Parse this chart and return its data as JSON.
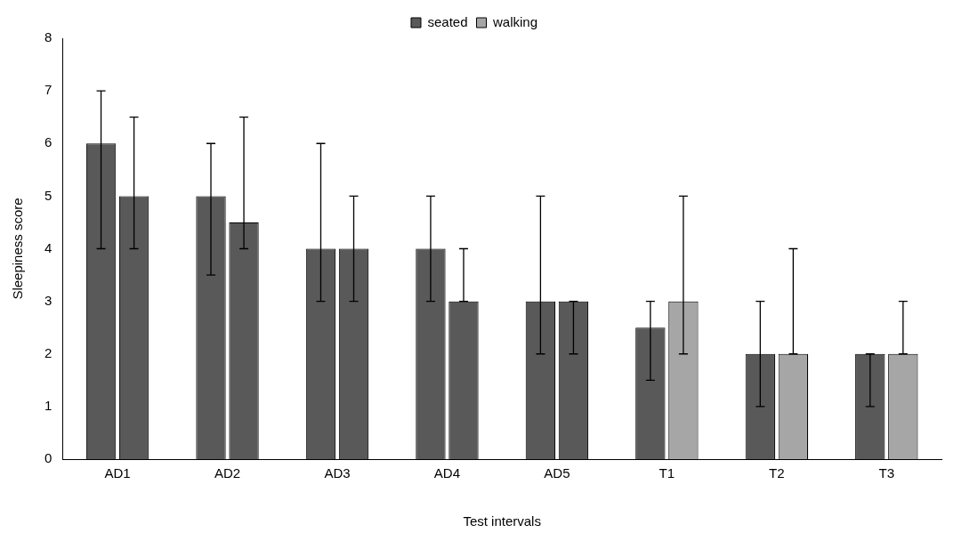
{
  "chart_data": {
    "type": "bar",
    "xlabel": "Test intervals",
    "ylabel": "Sleepiness score",
    "categories": [
      "AD1",
      "AD2",
      "AD3",
      "AD4",
      "AD5",
      "T1",
      "T2",
      "T3"
    ],
    "series": [
      {
        "name": "seated",
        "color": "#595959",
        "values": [
          6,
          5,
          4,
          4,
          3,
          2.5,
          2,
          2
        ],
        "errors": [
          [
            4,
            7
          ],
          [
            3.5,
            6
          ],
          [
            3,
            6
          ],
          [
            3,
            5
          ],
          [
            2,
            5
          ],
          [
            1.5,
            3
          ],
          [
            1,
            3
          ],
          [
            1,
            2
          ]
        ]
      },
      {
        "name": "walking",
        "color": "#a6a6a6",
        "colors": [
          "#595959",
          "#595959",
          "#595959",
          "#595959",
          "#595959",
          "#a6a6a6",
          "#a6a6a6",
          "#a6a6a6"
        ],
        "values": [
          5,
          4.5,
          4,
          3,
          3,
          3,
          2,
          2
        ],
        "errors": [
          [
            4,
            6.5
          ],
          [
            4,
            6.5
          ],
          [
            3,
            5
          ],
          [
            3,
            4
          ],
          [
            2,
            3
          ],
          [
            2,
            5
          ],
          [
            2,
            4
          ],
          [
            2,
            3
          ]
        ]
      }
    ],
    "ylim": [
      0,
      8
    ],
    "yticks": [
      0,
      1,
      2,
      3,
      4,
      5,
      6,
      7,
      8
    ],
    "grid": false,
    "legend": "top"
  }
}
